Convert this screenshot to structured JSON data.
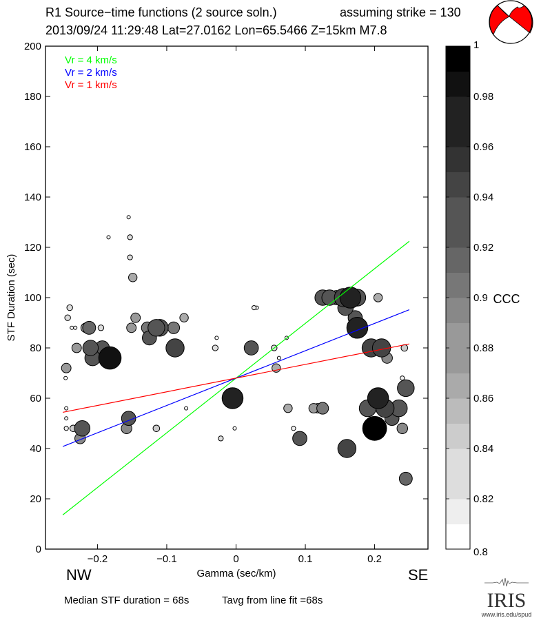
{
  "header": {
    "title_line1_left": "R1 Source−time functions (2 source soln.)",
    "title_line1_right": "assuming strike = 130",
    "title_line2": "2013/09/24 11:29:48  Lat=27.0162 Lon=65.5466  Z=15km  M7.8"
  },
  "footer": {
    "median": "Median STF duration = 68s",
    "tavg": "Tavg from line fit =68s",
    "direction_left": "NW",
    "direction_right": "SE",
    "logo_text": "IRIS",
    "logo_url": "www.iris.edu/spud"
  },
  "focal_mechanism": {
    "icon": "beachball-icon",
    "fill_color": "#ff0000",
    "background_color": "#ffffff"
  },
  "chart_data": {
    "type": "scatter",
    "title": "R1 Source-time functions (2 source soln.)",
    "xlabel": "Gamma (sec/km)",
    "ylabel": "STF Duration (sec)",
    "xlim": [
      -0.275,
      0.277
    ],
    "ylim": [
      0,
      200
    ],
    "xticks": [
      -0.2,
      -0.1,
      0,
      0.1,
      0.2
    ],
    "xtick_labels": [
      "−0.2",
      "−0.1",
      "0",
      "0.1",
      "0.2"
    ],
    "yticks": [
      0,
      20,
      40,
      60,
      80,
      100,
      120,
      140,
      160,
      180,
      200
    ],
    "ytick_labels": [
      "0",
      "20",
      "40",
      "60",
      "80",
      "100",
      "120",
      "140",
      "160",
      "180",
      "200"
    ],
    "grid": false,
    "legend_position": "top-left",
    "lines": [
      {
        "name": "Vr = 4 km/s",
        "color": "#00ff00",
        "x": [
          -0.25,
          0.25
        ],
        "y": [
          13.6,
          122.4
        ]
      },
      {
        "name": "Vr = 2 km/s",
        "color": "#0000ff",
        "x": [
          -0.25,
          0.25
        ],
        "y": [
          40.8,
          95.2
        ]
      },
      {
        "name": "Vr = 1 km/s",
        "color": "#ff0000",
        "x": [
          -0.25,
          0.25
        ],
        "y": [
          54.4,
          81.6
        ]
      }
    ],
    "colorbar": {
      "label": "CCC",
      "range": [
        0.8,
        1.0
      ],
      "ticks": [
        0.8,
        0.82,
        0.84,
        0.86,
        0.88,
        0.9,
        0.92,
        0.94,
        0.96,
        0.98,
        1
      ],
      "tick_labels": [
        "0.8",
        "0.82",
        "0.84",
        "0.86",
        "0.88",
        "0.9",
        "0.92",
        "0.94",
        "0.96",
        "0.98",
        "1"
      ],
      "bands": [
        "#ffffff",
        "#eeeeee",
        "#dddddd",
        "#dddddd",
        "#cccccc",
        "#bbbbbb",
        "#aaaaaa",
        "#999999",
        "#999999",
        "#888888",
        "#777777",
        "#666666",
        "#555555",
        "#555555",
        "#444444",
        "#333333",
        "#222222",
        "#222222",
        "#111111",
        "#000000"
      ]
    },
    "points": [
      {
        "x": -0.184,
        "y": 124,
        "ccc": 0.8
      },
      {
        "x": -0.155,
        "y": 132,
        "ccc": 0.8
      },
      {
        "x": -0.153,
        "y": 124,
        "ccc": 0.83
      },
      {
        "x": -0.153,
        "y": 116,
        "ccc": 0.83
      },
      {
        "x": -0.149,
        "y": 108,
        "ccc": 0.87
      },
      {
        "x": -0.24,
        "y": 96,
        "ccc": 0.84
      },
      {
        "x": -0.243,
        "y": 92,
        "ccc": 0.84
      },
      {
        "x": -0.237,
        "y": 88,
        "ccc": 0.8
      },
      {
        "x": -0.232,
        "y": 88,
        "ccc": 0.8
      },
      {
        "x": -0.212,
        "y": 88,
        "ccc": 0.91
      },
      {
        "x": -0.217,
        "y": 88,
        "ccc": 0.88
      },
      {
        "x": -0.195,
        "y": 88,
        "ccc": 0.84
      },
      {
        "x": -0.23,
        "y": 80,
        "ccc": 0.88
      },
      {
        "x": -0.207,
        "y": 76,
        "ccc": 0.93
      },
      {
        "x": -0.193,
        "y": 80,
        "ccc": 0.92
      },
      {
        "x": -0.21,
        "y": 80,
        "ccc": 0.93
      },
      {
        "x": -0.182,
        "y": 76,
        "ccc": 0.98
      },
      {
        "x": -0.245,
        "y": 72,
        "ccc": 0.88
      },
      {
        "x": -0.246,
        "y": 68,
        "ccc": 0.8
      },
      {
        "x": -0.145,
        "y": 92,
        "ccc": 0.88
      },
      {
        "x": -0.151,
        "y": 88,
        "ccc": 0.88
      },
      {
        "x": -0.11,
        "y": 88,
        "ccc": 0.94
      },
      {
        "x": -0.115,
        "y": 88,
        "ccc": 0.94
      },
      {
        "x": -0.128,
        "y": 88,
        "ccc": 0.9
      },
      {
        "x": -0.125,
        "y": 84,
        "ccc": 0.92
      },
      {
        "x": -0.09,
        "y": 88,
        "ccc": 0.9
      },
      {
        "x": -0.075,
        "y": 92,
        "ccc": 0.87
      },
      {
        "x": -0.088,
        "y": 80,
        "ccc": 0.95
      },
      {
        "x": -0.245,
        "y": 56,
        "ccc": 0.8
      },
      {
        "x": -0.245,
        "y": 52,
        "ccc": 0.8
      },
      {
        "x": -0.245,
        "y": 48,
        "ccc": 0.82
      },
      {
        "x": -0.222,
        "y": 48,
        "ccc": 0.93
      },
      {
        "x": -0.235,
        "y": 48,
        "ccc": 0.85
      },
      {
        "x": -0.225,
        "y": 44,
        "ccc": 0.89
      },
      {
        "x": -0.155,
        "y": 52,
        "ccc": 0.92
      },
      {
        "x": -0.158,
        "y": 48,
        "ccc": 0.89
      },
      {
        "x": -0.115,
        "y": 48,
        "ccc": 0.85
      },
      {
        "x": -0.072,
        "y": 56,
        "ccc": 0.8
      },
      {
        "x": -0.028,
        "y": 84,
        "ccc": 0.8
      },
      {
        "x": -0.03,
        "y": 80,
        "ccc": 0.84
      },
      {
        "x": 0.022,
        "y": 80,
        "ccc": 0.92
      },
      {
        "x": -0.022,
        "y": 44,
        "ccc": 0.83
      },
      {
        "x": -0.002,
        "y": 48,
        "ccc": 0.8
      },
      {
        "x": -0.005,
        "y": 60,
        "ccc": 0.97
      },
      {
        "x": 0.026,
        "y": 96,
        "ccc": 0.82
      },
      {
        "x": 0.03,
        "y": 96,
        "ccc": 0.8
      },
      {
        "x": 0.073,
        "y": 84,
        "ccc": 0.8
      },
      {
        "x": 0.055,
        "y": 80,
        "ccc": 0.84
      },
      {
        "x": 0.062,
        "y": 76,
        "ccc": 0.8
      },
      {
        "x": 0.058,
        "y": 72,
        "ccc": 0.87
      },
      {
        "x": 0.075,
        "y": 56,
        "ccc": 0.87
      },
      {
        "x": 0.083,
        "y": 48,
        "ccc": 0.82
      },
      {
        "x": 0.092,
        "y": 44,
        "ccc": 0.92
      },
      {
        "x": 0.125,
        "y": 56,
        "ccc": 0.9
      },
      {
        "x": 0.118,
        "y": 56,
        "ccc": 0.88
      },
      {
        "x": 0.112,
        "y": 56,
        "ccc": 0.88
      },
      {
        "x": 0.16,
        "y": 40,
        "ccc": 0.95
      },
      {
        "x": 0.125,
        "y": 100,
        "ccc": 0.93
      },
      {
        "x": 0.135,
        "y": 100,
        "ccc": 0.93
      },
      {
        "x": 0.175,
        "y": 100,
        "ccc": 0.94
      },
      {
        "x": 0.155,
        "y": 100,
        "ccc": 0.95
      },
      {
        "x": 0.165,
        "y": 100,
        "ccc": 0.97
      },
      {
        "x": 0.158,
        "y": 96,
        "ccc": 0.93
      },
      {
        "x": 0.145,
        "y": 100,
        "ccc": 0.92
      },
      {
        "x": 0.172,
        "y": 92,
        "ccc": 0.92
      },
      {
        "x": 0.175,
        "y": 88,
        "ccc": 0.97
      },
      {
        "x": 0.205,
        "y": 100,
        "ccc": 0.87
      },
      {
        "x": 0.195,
        "y": 80,
        "ccc": 0.95
      },
      {
        "x": 0.21,
        "y": 80,
        "ccc": 0.95
      },
      {
        "x": 0.218,
        "y": 76,
        "ccc": 0.89
      },
      {
        "x": 0.243,
        "y": 80,
        "ccc": 0.85
      },
      {
        "x": 0.24,
        "y": 68,
        "ccc": 0.82
      },
      {
        "x": 0.245,
        "y": 64,
        "ccc": 0.94
      },
      {
        "x": 0.225,
        "y": 52,
        "ccc": 0.92
      },
      {
        "x": 0.19,
        "y": 56,
        "ccc": 0.94
      },
      {
        "x": 0.215,
        "y": 56,
        "ccc": 0.95
      },
      {
        "x": 0.235,
        "y": 56,
        "ccc": 0.94
      },
      {
        "x": 0.205,
        "y": 60,
        "ccc": 0.97
      },
      {
        "x": 0.24,
        "y": 48,
        "ccc": 0.89
      },
      {
        "x": 0.2,
        "y": 48,
        "ccc": 0.99
      },
      {
        "x": 0.245,
        "y": 28,
        "ccc": 0.91
      }
    ]
  }
}
